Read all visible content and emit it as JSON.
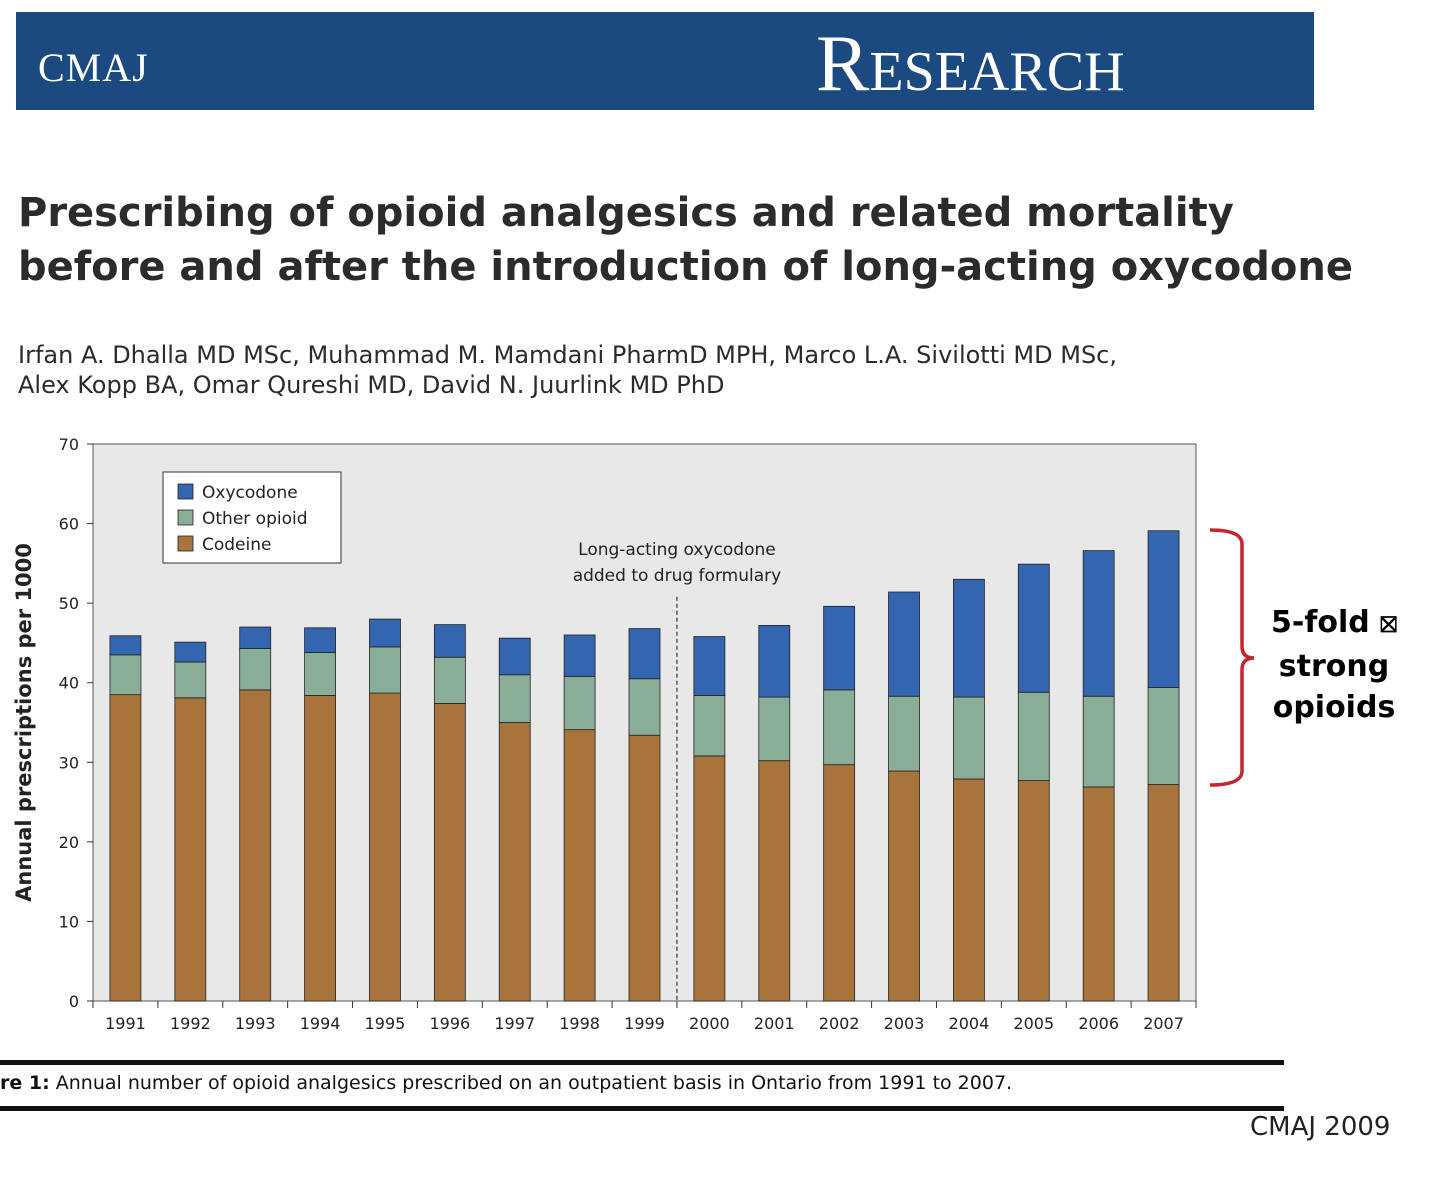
{
  "header": {
    "journal": "CMAJ",
    "section": "Research"
  },
  "article": {
    "title_line1": "Prescribing of opioid analgesics and related mortality",
    "title_line2": "before and after the introduction of long-acting oxycodone",
    "authors_line1": "Irfan A. Dhalla MD MSc, Muhammad M. Mamdani PharmD MPH, Marco L.A. Sivilotti MD MSc,",
    "authors_line2": "Alex Kopp BA, Omar Qureshi MD, David N. Juurlink MD PhD"
  },
  "caption": {
    "prefix": "re 1:",
    "text": " Annual number of opioid analgesics prescribed on an outpatient basis in Ontario from 1991 to 2007."
  },
  "brace_label": {
    "line1": "5-fold",
    "icon": "⛝",
    "line2": "strong",
    "line3": "opioids"
  },
  "source": "CMAJ 2009",
  "colors": {
    "banner": "#1b4a80",
    "oxycodone": "#3465b0",
    "other_opioid": "#8aad98",
    "codeine": "#a8743b",
    "plot_bg": "#e8e8e8",
    "brace": "#c1272d"
  },
  "chart_data": {
    "type": "bar",
    "stacked": true,
    "categories": [
      "1991",
      "1992",
      "1993",
      "1994",
      "1995",
      "1996",
      "1997",
      "1998",
      "1999",
      "2000",
      "2001",
      "2002",
      "2003",
      "2004",
      "2005",
      "2006",
      "2007"
    ],
    "series": [
      {
        "name": "Codeine",
        "color": "#a8743b",
        "values": [
          38.5,
          38.1,
          39.1,
          38.4,
          38.7,
          37.4,
          35.0,
          34.1,
          33.4,
          30.8,
          30.2,
          29.7,
          28.9,
          27.9,
          27.7,
          26.9,
          27.2
        ]
      },
      {
        "name": "Other opioid",
        "color": "#8aad98",
        "values": [
          5.0,
          4.5,
          5.2,
          5.4,
          5.8,
          5.8,
          6.0,
          6.7,
          7.1,
          7.6,
          8.0,
          9.4,
          9.4,
          10.3,
          11.1,
          11.4,
          12.2
        ]
      },
      {
        "name": "Oxycodone",
        "color": "#3465b0",
        "values": [
          2.4,
          2.5,
          2.7,
          3.1,
          3.5,
          4.1,
          4.6,
          5.2,
          6.3,
          7.4,
          9.0,
          10.5,
          13.1,
          14.8,
          16.1,
          18.3,
          19.7
        ]
      }
    ],
    "legend_order": [
      "Oxycodone",
      "Other opioid",
      "Codeine"
    ],
    "ylabel": "Annual prescriptions per 1000",
    "xlabel": "",
    "ylim": [
      0,
      70
    ],
    "yticks": [
      0,
      10,
      20,
      30,
      40,
      50,
      60,
      70
    ],
    "grid": false,
    "legend_position": "top-left",
    "annotation": {
      "line1": "Long-acting oxycodone",
      "line2": "added to drug formulary",
      "between": [
        "1999",
        "2000"
      ]
    }
  }
}
